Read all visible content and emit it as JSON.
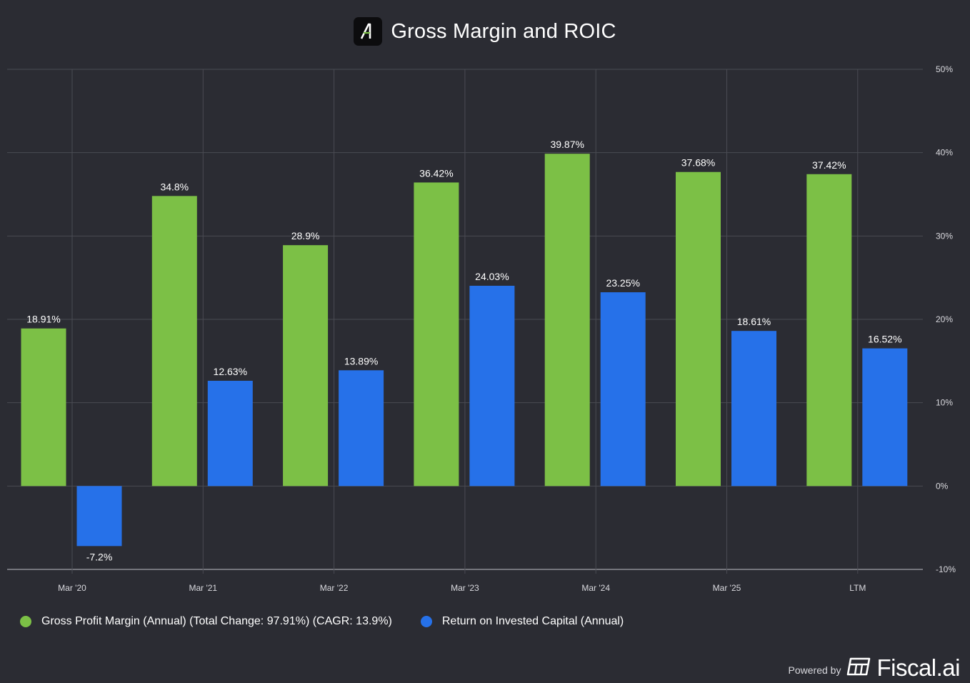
{
  "header": {
    "title": "Gross Margin and ROIC",
    "logo_icon": "alpha-logo-icon"
  },
  "colors": {
    "background": "#2b2c33",
    "grid": "#4a4b53",
    "gross_margin": "#7cc046",
    "roic": "#2671e9",
    "text": "#ffffff",
    "axis_text": "#d9d9de"
  },
  "chart_data": {
    "type": "bar",
    "title": "Gross Margin and ROIC",
    "categories": [
      "Mar '20",
      "Mar '21",
      "Mar '22",
      "Mar '23",
      "Mar '24",
      "Mar '25",
      "LTM"
    ],
    "series": [
      {
        "name": "Gross Profit Margin (Annual) (Total Change: 97.91%) (CAGR: 13.9%)",
        "color": "#7cc046",
        "values": [
          18.91,
          34.8,
          28.9,
          36.42,
          39.87,
          37.68,
          37.42
        ],
        "labels": [
          "18.91%",
          "34.8%",
          "28.9%",
          "36.42%",
          "39.87%",
          "37.68%",
          "37.42%"
        ]
      },
      {
        "name": "Return on Invested Capital (Annual)",
        "color": "#2671e9",
        "values": [
          -7.2,
          12.63,
          13.89,
          24.03,
          23.25,
          18.61,
          16.52
        ],
        "labels": [
          "-7.2%",
          "12.63%",
          "13.89%",
          "24.03%",
          "23.25%",
          "18.61%",
          "16.52%"
        ]
      }
    ],
    "y_ticks": [
      50,
      40,
      30,
      20,
      10,
      0,
      -10
    ],
    "y_tick_labels": [
      "50%",
      "40%",
      "30%",
      "20%",
      "10%",
      "0%",
      "-10%"
    ],
    "ylim": [
      -10,
      50
    ],
    "xlabel": "",
    "ylabel": "",
    "grid": true,
    "y_axis_side": "right",
    "legend_position": "bottom-left"
  },
  "legend": {
    "items": [
      {
        "label": "Gross Profit Margin (Annual) (Total Change: 97.91%) (CAGR: 13.9%)",
        "color": "#7cc046"
      },
      {
        "label": "Return on Invested Capital (Annual)",
        "color": "#2671e9"
      }
    ]
  },
  "footer": {
    "powered_by": "Powered by",
    "brand": "Fiscal.ai",
    "brand_icon": "fiscal-logo-icon"
  }
}
